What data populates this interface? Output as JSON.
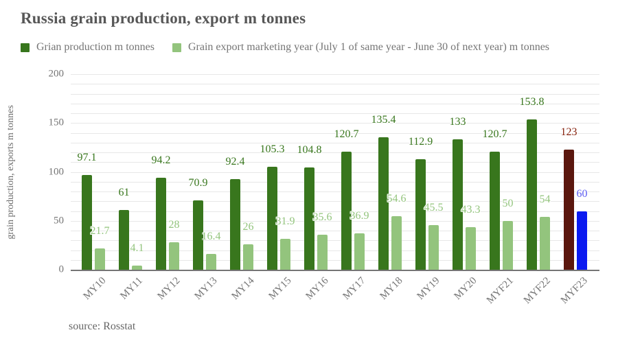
{
  "chart_data": {
    "type": "bar",
    "title": "Russia grain production, export m tonnes",
    "ylabel": "grain production, exports m tonnes",
    "xlabel": "",
    "categories": [
      "MY10",
      "MY11",
      "MY12",
      "MY13",
      "MY14",
      "MY15",
      "MY16",
      "MY17",
      "MY18",
      "MY19",
      "MY20",
      "MYF21",
      "MYF22",
      "MYF23"
    ],
    "series": [
      {
        "name": "Grian production m tonnes",
        "values": [
          97.1,
          61,
          94.2,
          70.9,
          92.4,
          105.3,
          104.8,
          120.7,
          135.4,
          112.9,
          133,
          120.7,
          153.8,
          123
        ],
        "color": "#38761d",
        "label_color": "#38761d",
        "last_color": "#5b170e",
        "last_label_color": "#85200c"
      },
      {
        "name": "Grain export marketing year (July 1 of same year - June 30 of next year) m tonnes",
        "values": [
          21.7,
          4.1,
          28,
          16.4,
          26,
          31.9,
          35.6,
          36.9,
          54.6,
          45.5,
          43.3,
          50,
          54,
          60
        ],
        "color": "#93c47d",
        "label_color": "#93c47d",
        "last_color": "#0b1af0",
        "last_label_color": "#5a5af0"
      }
    ],
    "ylim": [
      0,
      200
    ],
    "yticks": [
      0,
      50,
      100,
      150,
      200
    ],
    "grid_step": 10,
    "grid": true,
    "legend_position": "top",
    "gridline_color": "#e7e7e7",
    "axis_line_color": "#757575",
    "source": "source: Rosstat"
  }
}
